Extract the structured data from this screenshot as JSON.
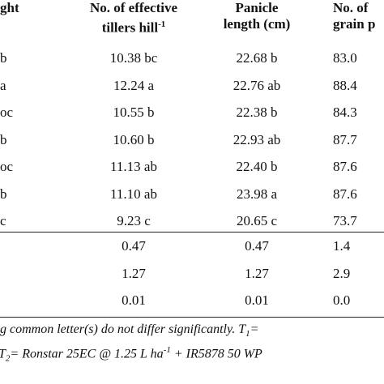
{
  "table": {
    "header": [
      {
        "lines": [
          "ght"
        ]
      },
      {
        "lines": [
          "No. of effective",
          "tillers  hill"
        ],
        "sup": "-1"
      },
      {
        "lines": [
          "Panicle",
          "length (cm)"
        ]
      },
      {
        "lines": [
          "No. of",
          "grain p"
        ]
      }
    ],
    "rows": [
      [
        "b",
        "10.38 bc",
        "22.68 b",
        "83.0"
      ],
      [
        "a",
        "12.24 a",
        "22.76 ab",
        "88.4"
      ],
      [
        "oc",
        "10.55 b",
        "22.38 b",
        "84.3"
      ],
      [
        "b",
        "10.60 b",
        "22.93 ab",
        "87.7"
      ],
      [
        "oc",
        "11.13 ab",
        "22.40 b",
        "87.6"
      ],
      [
        "b",
        "11.10 ab",
        "23.98 a",
        "87.6"
      ],
      [
        "c",
        "9.23 c",
        "20.65 c",
        "73.7"
      ]
    ],
    "stats": [
      [
        "0.47",
        "0.47",
        "1.4"
      ],
      [
        "1.27",
        "1.27",
        "2.9"
      ],
      [
        "0.01",
        "0.01",
        "0.0"
      ]
    ],
    "footnote": [
      [
        {
          "text": "g common letter(s) do not differ significantly. T"
        },
        {
          "text": "1",
          "style": "sub"
        },
        {
          "text": "="
        }
      ],
      [
        {
          "text": "T"
        },
        {
          "text": "2",
          "style": "sub"
        },
        {
          "text": "= Ronstar 25EC @ 1.25 L ha"
        },
        {
          "text": "-1",
          "style": "sup"
        },
        {
          "text": " + IR5878 50 WP"
        }
      ]
    ]
  }
}
